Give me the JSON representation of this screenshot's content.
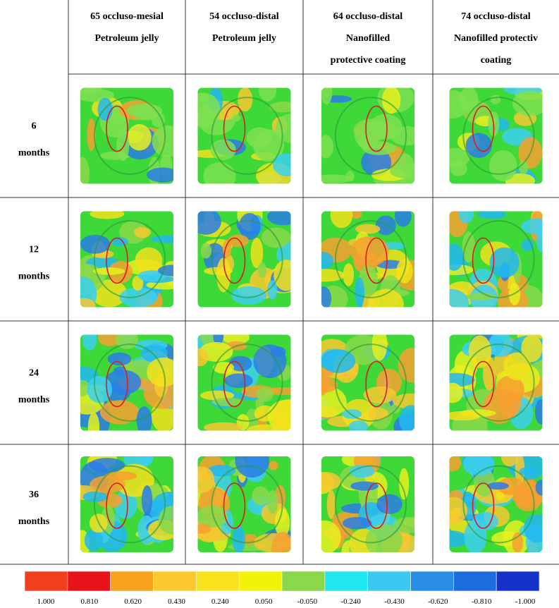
{
  "header": {
    "columns": [
      {
        "lines": [
          "65 occluso-mesial",
          "Petroleum jelly"
        ]
      },
      {
        "lines": [
          "54 occluso-distal",
          "Petroleum jelly"
        ]
      },
      {
        "lines": [
          "64 occluso-distal",
          "Nanofilled",
          "protective coating"
        ]
      },
      {
        "lines": [
          "74 occluso-distal",
          "Nanofilled protectiv",
          "coating"
        ]
      }
    ]
  },
  "rows": [
    {
      "lines": [
        "6",
        "months"
      ]
    },
    {
      "lines": [
        "12",
        "months"
      ]
    },
    {
      "lines": [
        "24",
        "months"
      ]
    },
    {
      "lines": [
        "36",
        "months"
      ]
    }
  ],
  "color_scale": {
    "colors": [
      "#f2401c",
      "#e8141c",
      "#f7a21e",
      "#fbc82e",
      "#f7e21c",
      "#f2f20a",
      "#8ad84a",
      "#22e6f0",
      "#3cc8f0",
      "#2a8ee6",
      "#1e6ee0",
      "#1432c8"
    ],
    "labels": [
      "1.000",
      "0.810",
      "0.620",
      "0.430",
      "0.240",
      "0.050",
      "-0.050",
      "-0.240",
      "-0.430",
      "-0.620",
      "-0.810",
      "-1.000"
    ]
  }
}
